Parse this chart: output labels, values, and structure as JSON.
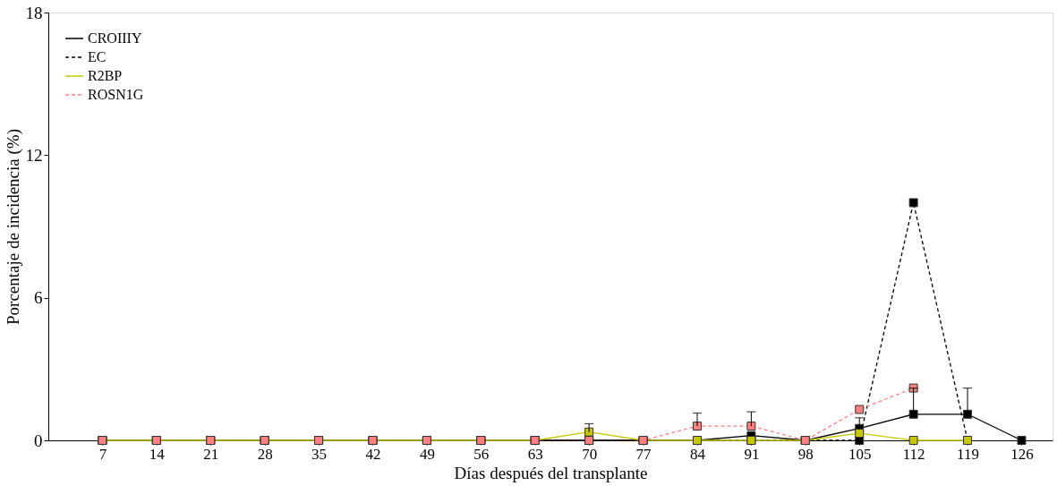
{
  "chart_data": {
    "type": "line",
    "xlabel": "Días después del transplante",
    "ylabel": "Porcentaje de incidencia (%)",
    "x": [
      7,
      14,
      21,
      28,
      35,
      42,
      49,
      56,
      63,
      70,
      77,
      84,
      91,
      98,
      105,
      112,
      119,
      126
    ],
    "xlim": [
      0,
      130
    ],
    "xticks": [
      7,
      14,
      21,
      28,
      35,
      42,
      49,
      56,
      63,
      70,
      77,
      84,
      91,
      98,
      105,
      112,
      119,
      126
    ],
    "ylim": [
      0,
      18
    ],
    "yticks": [
      0,
      6,
      12,
      18
    ],
    "grid": false,
    "legend": "top left",
    "marker": "square",
    "series": [
      {
        "name": "CROIIIY",
        "color": "#000000",
        "line_style": "solid",
        "values": [
          0,
          0,
          0,
          0,
          0,
          0,
          0,
          0,
          0,
          0,
          0,
          0,
          0.2,
          0,
          0.5,
          1.1,
          1.1,
          0
        ],
        "errors": [
          null,
          null,
          null,
          null,
          null,
          null,
          null,
          null,
          null,
          null,
          null,
          null,
          null,
          null,
          [
            0.5,
            0.95
          ],
          [
            1.1,
            2.2
          ],
          [
            1.1,
            2.2
          ],
          null
        ]
      },
      {
        "name": "EC",
        "color": "#000000",
        "line_style": "dashed",
        "values": [
          0,
          0,
          0,
          0,
          0,
          0,
          0,
          0,
          0,
          0,
          0,
          0,
          0,
          0,
          0,
          10,
          0,
          null
        ]
      },
      {
        "name": "R2BP",
        "color": "#c8c800",
        "line_style": "solid",
        "values": [
          0,
          0,
          0,
          0,
          0,
          0,
          0,
          0,
          0,
          0.35,
          0,
          0,
          0,
          0,
          0.3,
          0,
          0,
          null
        ],
        "errors": [
          null,
          null,
          null,
          null,
          null,
          null,
          null,
          null,
          null,
          [
            0.35,
            0.7
          ],
          null,
          null,
          null,
          null,
          null,
          null,
          null,
          null
        ]
      },
      {
        "name": "ROSN1G",
        "color": "#ff8080",
        "line_style": "dashed",
        "values": [
          0,
          0,
          0,
          0,
          0,
          0,
          0,
          0,
          0,
          0,
          0,
          0.6,
          0.6,
          0,
          1.3,
          2.2,
          null,
          null
        ],
        "errors": [
          null,
          null,
          null,
          null,
          null,
          null,
          null,
          null,
          null,
          null,
          null,
          [
            0.6,
            1.15
          ],
          [
            0.6,
            1.2
          ],
          null,
          null,
          null,
          null,
          null
        ]
      }
    ]
  }
}
